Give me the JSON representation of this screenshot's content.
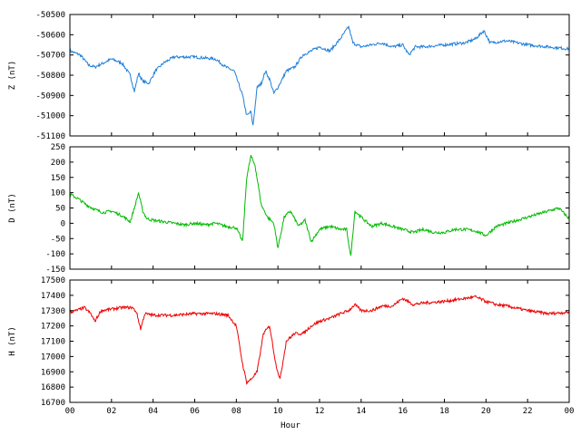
{
  "chart_data": {
    "type": "line",
    "xlabel": "Hour",
    "x_ticks": [
      "00",
      "02",
      "04",
      "06",
      "08",
      "10",
      "12",
      "14",
      "16",
      "18",
      "20",
      "22",
      "00"
    ],
    "xlim": [
      0,
      24
    ],
    "panels": [
      {
        "ylabel": "Z (nT)",
        "color": "#1f7fd8",
        "ylim": [
          -51100,
          -50500
        ],
        "y_ticks": [
          -50500,
          -50600,
          -50700,
          -50800,
          -50900,
          -51000,
          -51100
        ],
        "series": [
          {
            "x": [
              0,
              0.5,
              0.9,
              1.2,
              1.6,
              2.0,
              2.5,
              2.9,
              3.1,
              3.3,
              3.5,
              3.8,
              4.1,
              4.5,
              5.0,
              6.0,
              7.0,
              7.5,
              7.9,
              8.3,
              8.5,
              8.7,
              8.8,
              9.0,
              9.2,
              9.4,
              9.6,
              9.8,
              10.0,
              10.4,
              10.8,
              11.2,
              11.6,
              12.0,
              12.5,
              13.0,
              13.4,
              13.6,
              14.0,
              14.5,
              15.0,
              15.5,
              16.0,
              16.3,
              16.6,
              17.0,
              18.0,
              19.0,
              19.5,
              19.9,
              20.2,
              21.0,
              22.0,
              23.0,
              24.0
            ],
            "y": [
              -50680,
              -50700,
              -50750,
              -50760,
              -50740,
              -50720,
              -50740,
              -50800,
              -50880,
              -50790,
              -50830,
              -50840,
              -50780,
              -50740,
              -50710,
              -50710,
              -50720,
              -50760,
              -50780,
              -50900,
              -51000,
              -50980,
              -51050,
              -50860,
              -50840,
              -50780,
              -50820,
              -50890,
              -50860,
              -50780,
              -50760,
              -50700,
              -50680,
              -50660,
              -50680,
              -50620,
              -50560,
              -50640,
              -50660,
              -50650,
              -50640,
              -50660,
              -50650,
              -50700,
              -50660,
              -50660,
              -50650,
              -50640,
              -50620,
              -50580,
              -50640,
              -50630,
              -50650,
              -50660,
              -50670
            ]
          }
        ]
      },
      {
        "ylabel": "D (nT)",
        "color": "#00bb00",
        "ylim": [
          -150,
          250
        ],
        "y_ticks": [
          250,
          200,
          150,
          100,
          50,
          0,
          -50,
          -100,
          -150
        ],
        "series": [
          {
            "x": [
              0,
              0.4,
              0.8,
              1.2,
              1.6,
              2.0,
              2.5,
              2.9,
              3.1,
              3.3,
              3.5,
              3.7,
              4.0,
              4.5,
              5.0,
              5.5,
              6.0,
              6.5,
              7.0,
              7.5,
              8.0,
              8.3,
              8.5,
              8.7,
              8.9,
              9.2,
              9.5,
              9.8,
              10.0,
              10.3,
              10.6,
              11.0,
              11.3,
              11.6,
              12.0,
              12.5,
              13.0,
              13.3,
              13.5,
              13.7,
              14.0,
              14.5,
              15.0,
              15.5,
              16.0,
              16.5,
              17.0,
              17.5,
              18.0,
              18.5,
              19.0,
              19.5,
              20.0,
              20.5,
              21.0,
              21.5,
              22.0,
              22.5,
              23.0,
              23.5,
              24.0
            ],
            "y": [
              95,
              80,
              60,
              45,
              35,
              40,
              25,
              5,
              50,
              100,
              40,
              15,
              10,
              5,
              0,
              -5,
              0,
              -5,
              0,
              -10,
              -15,
              -60,
              150,
              220,
              190,
              60,
              20,
              0,
              -80,
              20,
              40,
              -10,
              10,
              -60,
              -20,
              -10,
              -20,
              -20,
              -110,
              40,
              20,
              -10,
              0,
              -10,
              -20,
              -30,
              -20,
              -30,
              -30,
              -20,
              -20,
              -25,
              -40,
              -10,
              0,
              10,
              20,
              30,
              40,
              50,
              15
            ]
          }
        ]
      },
      {
        "ylabel": "H (nT)",
        "color": "#ee0000",
        "ylim": [
          16700,
          17500
        ],
        "y_ticks": [
          17500,
          17400,
          17300,
          17200,
          17100,
          17000,
          16900,
          16800,
          16700
        ],
        "series": [
          {
            "x": [
              0,
              0.3,
              0.7,
              1.0,
              1.2,
              1.5,
              2.0,
              2.5,
              3.0,
              3.2,
              3.4,
              3.6,
              4.0,
              5.0,
              6.0,
              7.0,
              7.6,
              8.0,
              8.3,
              8.5,
              8.7,
              9.0,
              9.3,
              9.6,
              9.9,
              10.1,
              10.4,
              10.8,
              11.2,
              11.6,
              12.0,
              12.5,
              13.0,
              13.4,
              13.7,
              14.0,
              14.5,
              15.0,
              15.5,
              16.0,
              16.5,
              17.0,
              18.0,
              19.0,
              19.5,
              20.0,
              20.5,
              21.0,
              22.0,
              23.0,
              24.0
            ],
            "y": [
              17290,
              17300,
              17320,
              17280,
              17230,
              17300,
              17310,
              17320,
              17320,
              17290,
              17180,
              17280,
              17270,
              17270,
              17280,
              17280,
              17270,
              17200,
              16950,
              16830,
              16850,
              16900,
              17150,
              17200,
              16950,
              16850,
              17100,
              17150,
              17150,
              17200,
              17230,
              17250,
              17280,
              17300,
              17340,
              17300,
              17300,
              17330,
              17330,
              17380,
              17340,
              17350,
              17360,
              17380,
              17390,
              17360,
              17340,
              17330,
              17300,
              17280,
              17290
            ]
          }
        ]
      }
    ]
  }
}
